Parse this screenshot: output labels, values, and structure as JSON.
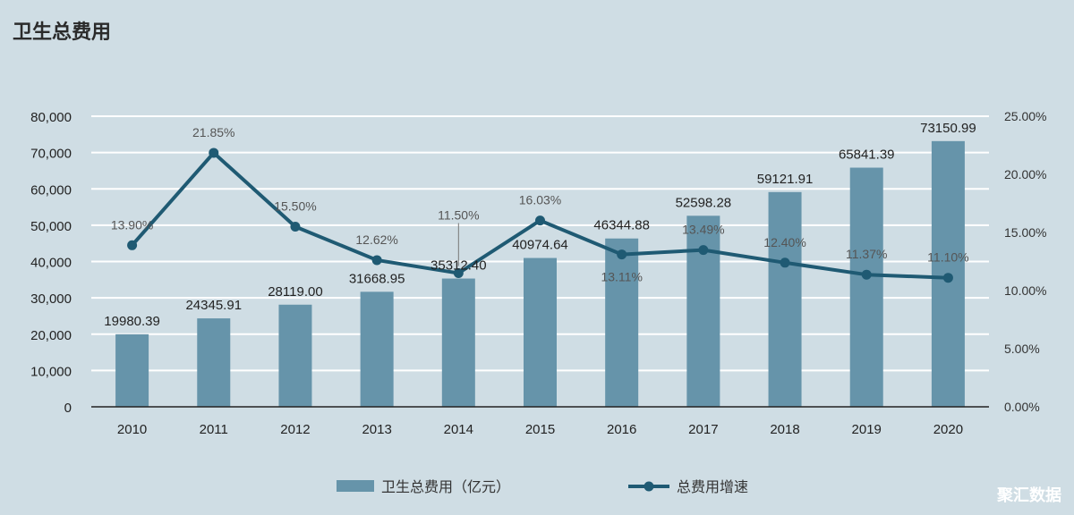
{
  "watermark": "聚汇数据",
  "colors": {
    "background": "#cfdde4",
    "bar": "#6694aa",
    "line": "#1f5a73",
    "grid": "#ffffff",
    "text": "#333333"
  },
  "chart_data": {
    "type": "bar",
    "title": "卫生总费用",
    "categories": [
      "2010",
      "2011",
      "2012",
      "2013",
      "2014",
      "2015",
      "2016",
      "2017",
      "2018",
      "2019",
      "2020"
    ],
    "y_ticks": [
      "0",
      "10,000",
      "20,000",
      "30,000",
      "40,000",
      "50,000",
      "60,000",
      "70,000",
      "80,000"
    ],
    "y2_ticks": [
      "0.00%",
      "5.00%",
      "10.00%",
      "15.00%",
      "20.00%",
      "25.00%"
    ],
    "ylim": [
      0,
      80000
    ],
    "y2lim": [
      0,
      25
    ],
    "grid": true,
    "legend_position": "bottom",
    "series": [
      {
        "name": "卫生总费用（亿元）",
        "type": "bar",
        "axis": "left",
        "values": [
          19980.39,
          24345.91,
          28119.0,
          31668.95,
          35312.4,
          40974.64,
          46344.88,
          52598.28,
          59121.91,
          65841.39,
          73150.99
        ],
        "labels": [
          "19980.39",
          "24345.91",
          "28119.00",
          "31668.95",
          "35312.40",
          "40974.64",
          "46344.88",
          "52598.28",
          "59121.91",
          "65841.39",
          "73150.99"
        ]
      },
      {
        "name": "总费用增速",
        "type": "line",
        "axis": "right",
        "values": [
          13.9,
          21.85,
          15.5,
          12.62,
          11.5,
          16.03,
          13.11,
          13.49,
          12.4,
          11.37,
          11.1
        ],
        "labels": [
          "13.90%",
          "21.85%",
          "15.50%",
          "12.62%",
          "11.50%",
          "16.03%",
          "13.11%",
          "13.49%",
          "12.40%",
          "11.37%",
          "11.10%"
        ]
      }
    ]
  }
}
